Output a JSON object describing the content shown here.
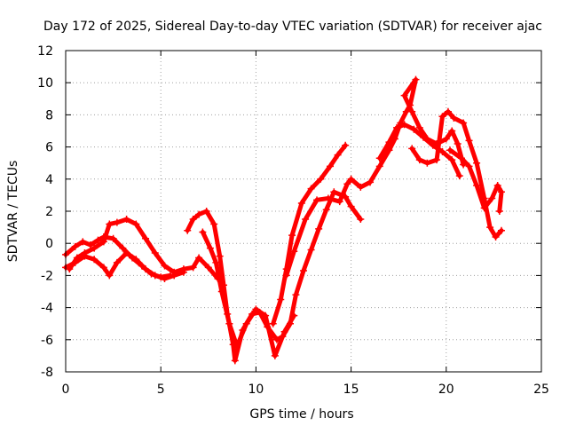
{
  "chart_data": {
    "type": "scatter",
    "title": "Day 172 of 2025, Sidereal Day-to-day VTEC variation (SDTVAR) for receiver ajac",
    "xlabel": "GPS time / hours",
    "ylabel": "SDTVAR / TECUs",
    "xlim": [
      0,
      25
    ],
    "ylim": [
      -8,
      12
    ],
    "xticks": [
      0,
      5,
      10,
      15,
      20,
      25
    ],
    "yticks": [
      -8,
      -6,
      -4,
      -2,
      0,
      2,
      4,
      6,
      8,
      10,
      12
    ],
    "grid": true,
    "marker": "plus",
    "color": "#ff0000",
    "series": [
      {
        "values": [
          [
            0,
            -1.5
          ],
          [
            0.5,
            -1.2
          ],
          [
            1,
            -0.8
          ],
          [
            1.5,
            -1.0
          ],
          [
            2,
            -1.5
          ],
          [
            2.3,
            -2.0
          ],
          [
            2.7,
            -1.2
          ],
          [
            3.2,
            -0.6
          ],
          [
            3.7,
            -1.0
          ],
          [
            4.2,
            -1.6
          ],
          [
            4.7,
            -2.0
          ],
          [
            5.2,
            -2.2
          ],
          [
            5.7,
            -2.0
          ],
          [
            6.2,
            -1.8
          ]
        ]
      },
      {
        "values": [
          [
            0,
            -0.7
          ],
          [
            0.5,
            -0.2
          ],
          [
            0.9,
            0.1
          ],
          [
            1.3,
            -0.1
          ],
          [
            1.7,
            0.2
          ],
          [
            2.0,
            0.4
          ],
          [
            2.5,
            0.3
          ],
          [
            3.0,
            -0.3
          ],
          [
            3.5,
            -0.9
          ],
          [
            4.0,
            -1.4
          ],
          [
            4.5,
            -1.9
          ],
          [
            5.0,
            -2.1
          ],
          [
            5.5,
            -2.0
          ]
        ]
      },
      {
        "values": [
          [
            0.2,
            -1.6
          ],
          [
            0.6,
            -0.9
          ],
          [
            1.0,
            -0.6
          ],
          [
            1.5,
            -0.3
          ],
          [
            2.0,
            0.1
          ],
          [
            2.3,
            1.2
          ],
          [
            2.7,
            1.3
          ],
          [
            3.2,
            1.5
          ],
          [
            3.7,
            1.2
          ],
          [
            4.2,
            0.3
          ],
          [
            4.7,
            -0.6
          ],
          [
            5.2,
            -1.4
          ],
          [
            5.7,
            -1.8
          ],
          [
            6.2,
            -1.6
          ],
          [
            6.7,
            -1.5
          ],
          [
            7.0,
            -0.9
          ],
          [
            7.5,
            -1.5
          ],
          [
            8.0,
            -2.2
          ]
        ]
      },
      {
        "values": [
          [
            6.4,
            0.8
          ],
          [
            6.7,
            1.5
          ],
          [
            7.0,
            1.8
          ],
          [
            7.4,
            2.0
          ],
          [
            7.8,
            1.2
          ],
          [
            8.1,
            -0.8
          ],
          [
            8.3,
            -2.6
          ],
          [
            8.5,
            -4.4
          ],
          [
            8.8,
            -6.3
          ],
          [
            8.9,
            -7.3
          ],
          [
            9.3,
            -5.4
          ],
          [
            9.8,
            -4.4
          ],
          [
            10.2,
            -4.3
          ],
          [
            10.6,
            -5.2
          ],
          [
            11.1,
            -6.0
          ],
          [
            11.4,
            -5.8
          ],
          [
            11.8,
            -5.0
          ],
          [
            12.1,
            -3.2
          ],
          [
            12.5,
            -1.7
          ],
          [
            12.9,
            -0.4
          ],
          [
            13.3,
            0.9
          ],
          [
            13.7,
            2.1
          ],
          [
            14.1,
            3.2
          ],
          [
            14.7,
            2.9
          ],
          [
            15.0,
            2.3
          ],
          [
            15.5,
            1.5
          ]
        ]
      },
      {
        "values": [
          [
            7.2,
            0.7
          ],
          [
            7.6,
            -0.3
          ],
          [
            7.9,
            -1.2
          ],
          [
            8.2,
            -3.0
          ],
          [
            8.6,
            -5.0
          ],
          [
            9.0,
            -6.4
          ],
          [
            9.5,
            -5.0
          ],
          [
            10.0,
            -4.1
          ],
          [
            10.5,
            -4.5
          ],
          [
            11.0,
            -7.0
          ],
          [
            11.5,
            -5.5
          ],
          [
            12.0,
            -4.5
          ]
        ]
      },
      {
        "values": [
          [
            10.9,
            -5.0
          ],
          [
            11.3,
            -3.5
          ],
          [
            11.6,
            -1.6
          ],
          [
            11.9,
            0.5
          ],
          [
            12.4,
            2.5
          ],
          [
            12.9,
            3.4
          ],
          [
            13.4,
            4.0
          ],
          [
            13.9,
            4.8
          ],
          [
            14.3,
            5.5
          ],
          [
            14.7,
            6.1
          ]
        ]
      },
      {
        "values": [
          [
            11.6,
            -2.0
          ],
          [
            12.0,
            -0.5
          ],
          [
            12.6,
            1.5
          ],
          [
            13.2,
            2.7
          ],
          [
            13.8,
            2.8
          ],
          [
            14.4,
            2.6
          ],
          [
            14.8,
            3.7
          ],
          [
            15.0,
            4.0
          ],
          [
            15.5,
            3.5
          ],
          [
            16.0,
            3.8
          ],
          [
            16.5,
            4.8
          ],
          [
            17.0,
            5.8
          ],
          [
            17.3,
            6.5
          ],
          [
            17.6,
            7.5
          ],
          [
            17.9,
            8.2
          ],
          [
            18.1,
            8.6
          ],
          [
            18.4,
            10.2
          ],
          [
            17.8,
            9.2
          ],
          [
            18.2,
            8.2
          ],
          [
            18.6,
            7.2
          ],
          [
            19.0,
            6.5
          ],
          [
            19.5,
            6.2
          ],
          [
            20.0,
            6.5
          ],
          [
            20.3,
            7.0
          ],
          [
            20.6,
            6.2
          ],
          [
            20.9,
            4.9
          ]
        ]
      },
      {
        "values": [
          [
            16.5,
            5.3
          ],
          [
            17.0,
            6.3
          ],
          [
            17.4,
            7.2
          ],
          [
            17.8,
            7.4
          ],
          [
            18.3,
            7.1
          ],
          [
            18.8,
            6.6
          ],
          [
            19.3,
            6.1
          ],
          [
            19.8,
            5.7
          ],
          [
            20.3,
            5.2
          ],
          [
            20.7,
            4.2
          ]
        ]
      },
      {
        "values": [
          [
            18.2,
            5.9
          ],
          [
            18.6,
            5.2
          ],
          [
            19.0,
            5.0
          ],
          [
            19.5,
            5.2
          ],
          [
            19.8,
            7.9
          ],
          [
            20.1,
            8.2
          ],
          [
            20.4,
            7.8
          ],
          [
            20.9,
            7.5
          ],
          [
            21.2,
            6.4
          ],
          [
            21.6,
            5.0
          ],
          [
            22.0,
            2.8
          ],
          [
            22.3,
            1.0
          ],
          [
            22.6,
            0.4
          ],
          [
            22.9,
            0.8
          ]
        ]
      },
      {
        "values": [
          [
            20.2,
            5.8
          ],
          [
            20.8,
            5.3
          ],
          [
            21.2,
            4.8
          ],
          [
            21.6,
            3.6
          ],
          [
            22.0,
            2.2
          ],
          [
            22.4,
            2.8
          ],
          [
            22.7,
            3.6
          ],
          [
            22.9,
            3.2
          ],
          [
            22.8,
            2.0
          ]
        ]
      }
    ]
  }
}
